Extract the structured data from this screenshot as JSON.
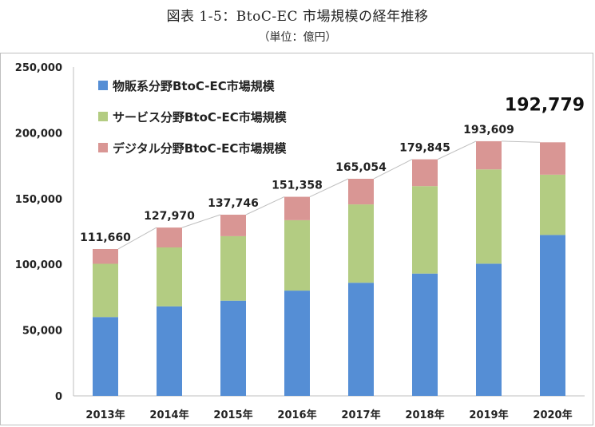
{
  "title": "図表 1-5：BtoC-EC 市場規模の経年推移",
  "subtitle": "（単位：億円）",
  "chart_data": {
    "type": "bar",
    "stacked": true,
    "categories": [
      "2013年",
      "2014年",
      "2015年",
      "2016年",
      "2017年",
      "2018年",
      "2019年",
      "2020年"
    ],
    "series": [
      {
        "name": "物販系分野BtoC-EC市場規模",
        "color": "#558ed5",
        "values": [
          59931,
          68043,
          72398,
          80043,
          86008,
          92992,
          100515,
          122333
        ]
      },
      {
        "name": "サービス分野BtoC-EC市場規模",
        "color": "#b3cc82",
        "values": [
          40481,
          44816,
          49014,
          53532,
          59568,
          66471,
          71672,
          45832
        ]
      },
      {
        "name": "デジタル分野BtoC-EC市場規模",
        "color": "#d99694",
        "values": [
          11248,
          15111,
          16334,
          17783,
          19478,
          20382,
          21422,
          24614
        ]
      }
    ],
    "totals": [
      "111,660",
      "127,970",
      "137,746",
      "151,358",
      "165,054",
      "179,845",
      "193,609",
      "192,779"
    ],
    "y_ticks": [
      "0",
      "50,000",
      "100,000",
      "150,000",
      "200,000",
      "250,000"
    ],
    "ylim": [
      0,
      250000
    ],
    "grid": false,
    "legend_position": "top-left"
  }
}
